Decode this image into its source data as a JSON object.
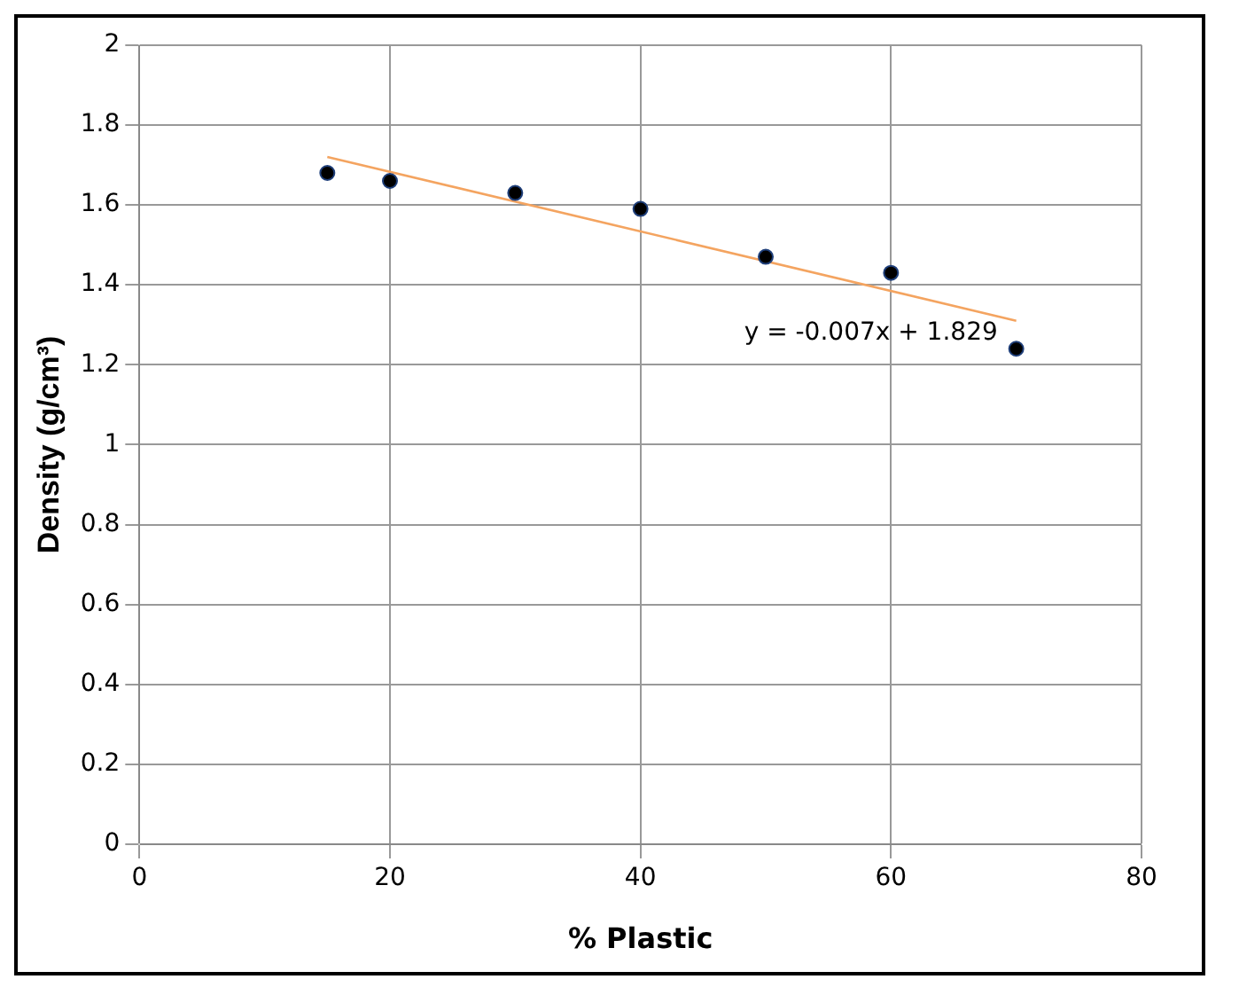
{
  "chart_data": {
    "type": "scatter",
    "xlabel": "% Plastic",
    "ylabel": "Density (g/cm³)",
    "series": [
      {
        "marker": "circle",
        "color": "#000000",
        "x": [
          15,
          20,
          30,
          40,
          50,
          60,
          70
        ],
        "values": [
          1.68,
          1.66,
          1.63,
          1.59,
          1.47,
          1.43,
          1.24
        ]
      },
      {
        "type": "line",
        "color": "#f4a460",
        "x": [
          15,
          70
        ],
        "values": [
          1.72,
          1.31
        ]
      }
    ],
    "annotations": [
      "y = -0.007x + 1.829"
    ],
    "xlim": [
      0,
      80
    ],
    "xticks": [
      0,
      20,
      40,
      60,
      80
    ],
    "ylim": [
      0,
      2
    ],
    "yticks": [
      0,
      0.2,
      0.4,
      0.6,
      0.8,
      1,
      1.2,
      1.4,
      1.6,
      1.8,
      2
    ],
    "grid": true,
    "legend": false
  }
}
